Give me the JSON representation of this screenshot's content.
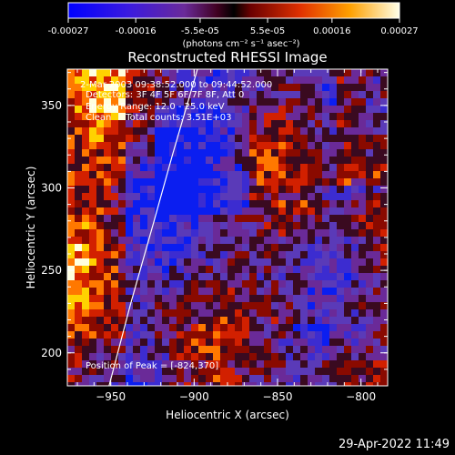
{
  "colorbar": {
    "tick_labels": [
      "-0.00027",
      "-0.00016",
      "-5.5e-05",
      "5.5e-05",
      "0.00016",
      "0.00027"
    ],
    "tick_values": [
      -0.00027,
      -0.00016,
      -5.5e-05,
      5.5e-05,
      0.00016,
      0.00027
    ],
    "range": [
      -0.00027,
      0.00027
    ],
    "units_label": "(photons cm⁻² s⁻¹ asec⁻²)"
  },
  "header": {
    "title": "Reconstructed RHESSI Image"
  },
  "info": {
    "time_line": "2-Mar-2003 09:38:52.000 to 09:44:52.000",
    "detectors_line": "Detectors: 3F 4F 5F 6F 7F 8F, Att 0",
    "energy_line": "Energy Range: 12.0 - 25.0 keV",
    "clean_line": "Clean     Total counts: 3.51E+03",
    "peak_line": "Position of Peak = [-824,370]"
  },
  "footer": {
    "timestamp": "29-Apr-2022 11:49"
  },
  "chart_data": {
    "type": "heatmap",
    "title": "Reconstructed RHESSI Image",
    "xlabel": "Heliocentric X (arcsec)",
    "ylabel": "Heliocentric Y (arcsec)",
    "xlim": [
      -976,
      -784
    ],
    "ylim": [
      180,
      372
    ],
    "x_ticks": [
      -950,
      -900,
      -850,
      -800
    ],
    "y_ticks": [
      200,
      250,
      300,
      350
    ],
    "x_tick_labels": [
      "−950",
      "−900",
      "−850",
      "−800"
    ],
    "y_tick_labels": [
      "200",
      "250",
      "300",
      "350"
    ],
    "peak": [
      -824,
      370
    ],
    "grid": false,
    "colormap": [
      "#000000",
      "#0b1ef0",
      "#3c2cd0",
      "#5a3ab8",
      "#6a2a98",
      "#3a0a20",
      "#8a0a00",
      "#d22000",
      "#ff7800",
      "#ffd200",
      "#ffffe0"
    ],
    "limb_curve": [
      [
        -951,
        180
      ],
      [
        -938,
        230
      ],
      [
        -924,
        280
      ],
      [
        -913,
        320
      ],
      [
        -898,
        372
      ]
    ]
  }
}
